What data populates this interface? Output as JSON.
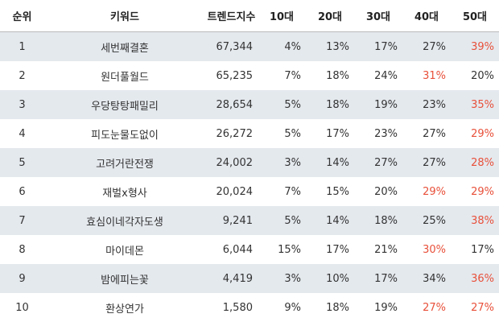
{
  "table": {
    "header": [
      "순위",
      "키워드",
      "트렌드지수",
      "10대",
      "20대",
      "30대",
      "40대",
      "50대"
    ],
    "highlight_color": "#e8503a",
    "rows": [
      {
        "cells": [
          "1",
          "세번째결혼",
          "67,344",
          "4%",
          "13%",
          "17%",
          "27%",
          "39%"
        ],
        "highlight": [
          7
        ]
      },
      {
        "cells": [
          "2",
          "원더풀월드",
          "65,235",
          "7%",
          "18%",
          "24%",
          "31%",
          "20%"
        ],
        "highlight": [
          6
        ]
      },
      {
        "cells": [
          "3",
          "우당탕탕패밀리",
          "28,654",
          "5%",
          "18%",
          "19%",
          "23%",
          "35%"
        ],
        "highlight": [
          7
        ]
      },
      {
        "cells": [
          "4",
          "피도눈물도없이",
          "26,272",
          "5%",
          "17%",
          "23%",
          "27%",
          "29%"
        ],
        "highlight": [
          7
        ]
      },
      {
        "cells": [
          "5",
          "고려거란전쟁",
          "24,002",
          "3%",
          "14%",
          "27%",
          "27%",
          "28%"
        ],
        "highlight": [
          7
        ]
      },
      {
        "cells": [
          "6",
          "재벌x형사",
          "20,024",
          "7%",
          "15%",
          "20%",
          "29%",
          "29%"
        ],
        "highlight": [
          6,
          7
        ]
      },
      {
        "cells": [
          "7",
          "효심이네각자도생",
          "9,241",
          "5%",
          "14%",
          "18%",
          "25%",
          "38%"
        ],
        "highlight": [
          7
        ]
      },
      {
        "cells": [
          "8",
          "마이데몬",
          "6,044",
          "15%",
          "17%",
          "21%",
          "30%",
          "17%"
        ],
        "highlight": [
          6
        ]
      },
      {
        "cells": [
          "9",
          "밤에피는꽃",
          "4,419",
          "3%",
          "10%",
          "17%",
          "34%",
          "36%"
        ],
        "highlight": [
          7
        ]
      },
      {
        "cells": [
          "10",
          "환상연가",
          "1,580",
          "9%",
          "18%",
          "19%",
          "27%",
          "27%"
        ],
        "highlight": [
          6,
          7
        ]
      }
    ]
  }
}
